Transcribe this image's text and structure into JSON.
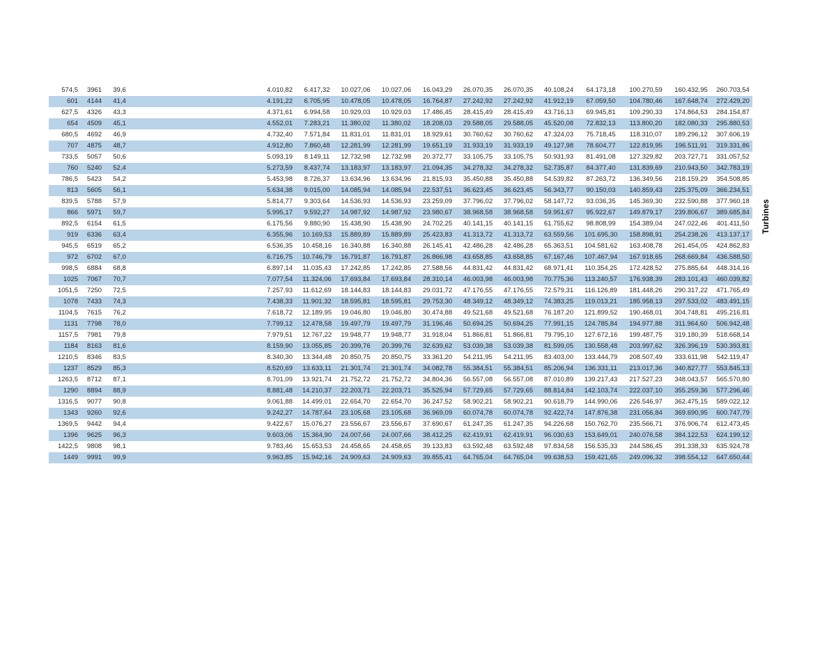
{
  "page": {
    "background": "#ffffff",
    "band_color": "#b9d3e9",
    "text_color": "#262626"
  },
  "side_label": "Turbines",
  "table": {
    "rows": [
      [
        "574,5",
        "3961",
        "39,6",
        "4.010,82",
        "6.417,32",
        "10.027,06",
        "10.027,06",
        "16.043,29",
        "26.070,35",
        "26.070,35",
        "40.108,24",
        "64.173,18",
        "100.270,59",
        "160.432,95",
        "260.703,54"
      ],
      [
        "601",
        "4144",
        "41,4",
        "4.191,22",
        "6.705,95",
        "10.478,05",
        "10.478,05",
        "16.764,87",
        "27.242,92",
        "27.242,92",
        "41.912,19",
        "67.059,50",
        "104.780,46",
        "167.648,74",
        "272.429,20"
      ],
      [
        "627,5",
        "4326",
        "43,3",
        "4.371,61",
        "6.994,58",
        "10.929,03",
        "10.929,03",
        "17.486,45",
        "28.415,49",
        "28.415,49",
        "43.716,13",
        "69.945,81",
        "109.290,33",
        "174.864,53",
        "284.154,87"
      ],
      [
        "654",
        "4509",
        "45,1",
        "4.552,01",
        "7.283,21",
        "11.380,02",
        "11.380,02",
        "18.208,03",
        "29.588,05",
        "29.588,05",
        "45.520,08",
        "72.832,13",
        "113.800,20",
        "182.080,33",
        "295.880,53"
      ],
      [
        "680,5",
        "4692",
        "46,9",
        "4.732,40",
        "7.571,84",
        "11.831,01",
        "11.831,01",
        "18.929,61",
        "30.760,62",
        "30.760,62",
        "47.324,03",
        "75.718,45",
        "118.310,07",
        "189.296,12",
        "307.606,19"
      ],
      [
        "707",
        "4875",
        "48,7",
        "4.912,80",
        "7.860,48",
        "12.281,99",
        "12.281,99",
        "19.651,19",
        "31.933,19",
        "31.933,19",
        "49.127,98",
        "78.604,77",
        "122.819,95",
        "196.511,91",
        "319.331,86"
      ],
      [
        "733,5",
        "5057",
        "50,6",
        "5.093,19",
        "8.149,11",
        "12.732,98",
        "12.732,98",
        "20.372,77",
        "33.105,75",
        "33.105,75",
        "50.931,93",
        "81.491,08",
        "127.329,82",
        "203.727,71",
        "331.057,52"
      ],
      [
        "760",
        "5240",
        "52,4",
        "5.273,59",
        "8.437,74",
        "13.183,97",
        "13.183,97",
        "21.094,35",
        "34.278,32",
        "34.278,32",
        "52.735,87",
        "84.377,40",
        "131.839,69",
        "210.943,50",
        "342.783,19"
      ],
      [
        "786,5",
        "5423",
        "54,2",
        "5.453,98",
        "8.726,37",
        "13.634,96",
        "13.634,96",
        "21.815,93",
        "35.450,88",
        "35.450,88",
        "54.539,82",
        "87.263,72",
        "136.349,56",
        "218.159,29",
        "354.508,85"
      ],
      [
        "813",
        "5605",
        "56,1",
        "5.634,38",
        "9.015,00",
        "14.085,94",
        "14.085,94",
        "22.537,51",
        "36.623,45",
        "36.623,45",
        "56.343,77",
        "90.150,03",
        "140.859,43",
        "225.375,09",
        "366.234,51"
      ],
      [
        "839,5",
        "5788",
        "57,9",
        "5.814,77",
        "9.303,64",
        "14.536,93",
        "14.536,93",
        "23.259,09",
        "37.796,02",
        "37.796,02",
        "58.147,72",
        "93.036,35",
        "145.369,30",
        "232.590,88",
        "377.960,18"
      ],
      [
        "866",
        "5971",
        "59,7",
        "5.995,17",
        "9.592,27",
        "14.987,92",
        "14.987,92",
        "23.980,67",
        "38.968,58",
        "38.968,58",
        "59.951,67",
        "95.922,67",
        "149.879,17",
        "239.806,67",
        "389.685,84"
      ],
      [
        "892,5",
        "6154",
        "61,5",
        "6.175,56",
        "9.880,90",
        "15.438,90",
        "15.438,90",
        "24.702,25",
        "40.141,15",
        "40.141,15",
        "61.755,62",
        "98.808,99",
        "154.389,04",
        "247.022,46",
        "401.411,50"
      ],
      [
        "919",
        "6336",
        "63,4",
        "6.355,96",
        "10.169,53",
        "15.889,89",
        "15.889,89",
        "25.423,83",
        "41.313,72",
        "41.313,72",
        "63.559,56",
        "101.695,30",
        "158.898,91",
        "254.238,26",
        "413.137,17"
      ],
      [
        "945,5",
        "6519",
        "65,2",
        "6.536,35",
        "10.458,16",
        "16.340,88",
        "16.340,88",
        "26.145,41",
        "42.486,28",
        "42.486,28",
        "65.363,51",
        "104.581,62",
        "163.408,78",
        "261.454,05",
        "424.862,83"
      ],
      [
        "972",
        "6702",
        "67,0",
        "6.716,75",
        "10.746,79",
        "16.791,87",
        "16.791,87",
        "26.866,98",
        "43.658,85",
        "43.658,85",
        "67.167,46",
        "107.467,94",
        "167.918,65",
        "268.669,84",
        "436.588,50"
      ],
      [
        "998,5",
        "6884",
        "68,8",
        "6.897,14",
        "11.035,43",
        "17.242,85",
        "17.242,85",
        "27.588,56",
        "44.831,42",
        "44.831,42",
        "68.971,41",
        "110.354,25",
        "172.428,52",
        "275.885,64",
        "448.314,16"
      ],
      [
        "1025",
        "7067",
        "70,7",
        "7.077,54",
        "11.324,06",
        "17.693,84",
        "17.693,84",
        "28.310,14",
        "46.003,98",
        "46.003,98",
        "70.775,36",
        "113.240,57",
        "176.938,39",
        "283.101,43",
        "460.039,82"
      ],
      [
        "1051,5",
        "7250",
        "72,5",
        "7.257,93",
        "11.612,69",
        "18.144,83",
        "18.144,83",
        "29.031,72",
        "47.176,55",
        "47.176,55",
        "72.579,31",
        "116.126,89",
        "181.448,26",
        "290.317,22",
        "471.765,49"
      ],
      [
        "1078",
        "7433",
        "74,3",
        "7.438,33",
        "11.901,32",
        "18.595,81",
        "18.595,81",
        "29.753,30",
        "48.349,12",
        "48.349,12",
        "74.383,25",
        "119.013,21",
        "185.958,13",
        "297.533,02",
        "483.491,15"
      ],
      [
        "1104,5",
        "7615",
        "76,2",
        "7.618,72",
        "12.189,95",
        "19.046,80",
        "19.046,80",
        "30.474,88",
        "49.521,68",
        "49.521,68",
        "76.187,20",
        "121.899,52",
        "190.468,01",
        "304.748,81",
        "495.216,81"
      ],
      [
        "1131",
        "7798",
        "78,0",
        "7.799,12",
        "12.478,58",
        "19.497,79",
        "19.497,79",
        "31.196,46",
        "50.694,25",
        "50.694,25",
        "77.991,15",
        "124.785,84",
        "194.977,88",
        "311.964,60",
        "506.942,48"
      ],
      [
        "1157,5",
        "7981",
        "79,8",
        "7.979,51",
        "12.767,22",
        "19.948,77",
        "19.948,77",
        "31.918,04",
        "51.866,81",
        "51.866,81",
        "79.795,10",
        "127.672,16",
        "199.487,75",
        "319.180,39",
        "518.668,14"
      ],
      [
        "1184",
        "8163",
        "81,6",
        "8.159,90",
        "13.055,85",
        "20.399,76",
        "20.399,76",
        "32.639,62",
        "53.039,38",
        "53.039,38",
        "81.599,05",
        "130.558,48",
        "203.997,62",
        "326.396,19",
        "530.393,81"
      ],
      [
        "1210,5",
        "8346",
        "83,5",
        "8.340,30",
        "13.344,48",
        "20.850,75",
        "20.850,75",
        "33.361,20",
        "54.211,95",
        "54.211,95",
        "83.403,00",
        "133.444,79",
        "208.507,49",
        "333.611,98",
        "542.119,47"
      ],
      [
        "1237",
        "8529",
        "85,3",
        "8.520,69",
        "13.633,11",
        "21.301,74",
        "21.301,74",
        "34.082,78",
        "55.384,51",
        "55.384,51",
        "85.206,94",
        "136.331,11",
        "213.017,36",
        "340.827,77",
        "553.845,13"
      ],
      [
        "1263,5",
        "8712",
        "87,1",
        "8.701,09",
        "13.921,74",
        "21.752,72",
        "21.752,72",
        "34.804,36",
        "56.557,08",
        "56.557,08",
        "87.010,89",
        "139.217,43",
        "217.527,23",
        "348.043,57",
        "565.570,80"
      ],
      [
        "1290",
        "8894",
        "88,9",
        "8.881,48",
        "14.210,37",
        "22.203,71",
        "22.203,71",
        "35.525,94",
        "57.729,65",
        "57.729,65",
        "88.814,84",
        "142.103,74",
        "222.037,10",
        "355.259,36",
        "577.296,46"
      ],
      [
        "1316,5",
        "9077",
        "90,8",
        "9.061,88",
        "14.499,01",
        "22.654,70",
        "22.654,70",
        "36.247,52",
        "58.902,21",
        "58.902,21",
        "90.618,79",
        "144.990,06",
        "226.546,97",
        "362.475,15",
        "589.022,12"
      ],
      [
        "1343",
        "9260",
        "92,6",
        "9.242,27",
        "14.787,64",
        "23.105,68",
        "23.105,68",
        "36.969,09",
        "60.074,78",
        "60.074,78",
        "92.422,74",
        "147.876,38",
        "231.056,84",
        "369.690,95",
        "600.747,79"
      ],
      [
        "1369,5",
        "9442",
        "94,4",
        "9.422,67",
        "15.076,27",
        "23.556,67",
        "23.556,67",
        "37.690,67",
        "61.247,35",
        "61.247,35",
        "94.226,68",
        "150.762,70",
        "235.566,71",
        "376.906,74",
        "612.473,45"
      ],
      [
        "1396",
        "9625",
        "96,3",
        "9.603,06",
        "15.364,90",
        "24.007,66",
        "24.007,66",
        "38.412,25",
        "62.419,91",
        "62.419,91",
        "96.030,63",
        "153.649,01",
        "240.076,58",
        "384.122,53",
        "624.199,12"
      ],
      [
        "1422,5",
        "9808",
        "98,1",
        "9.783,46",
        "15.653,53",
        "24.458,65",
        "24.458,65",
        "39.133,83",
        "63.592,48",
        "63.592,48",
        "97.834,58",
        "156.535,33",
        "244.586,45",
        "391.338,33",
        "635.924,78"
      ],
      [
        "1449",
        "9991",
        "99,9",
        "9.963,85",
        "15.942,16",
        "24.909,63",
        "24.909,63",
        "39.855,41",
        "64.765,04",
        "64.765,04",
        "99.638,53",
        "159.421,65",
        "249.096,32",
        "398.554,12",
        "647.650,44"
      ]
    ]
  }
}
